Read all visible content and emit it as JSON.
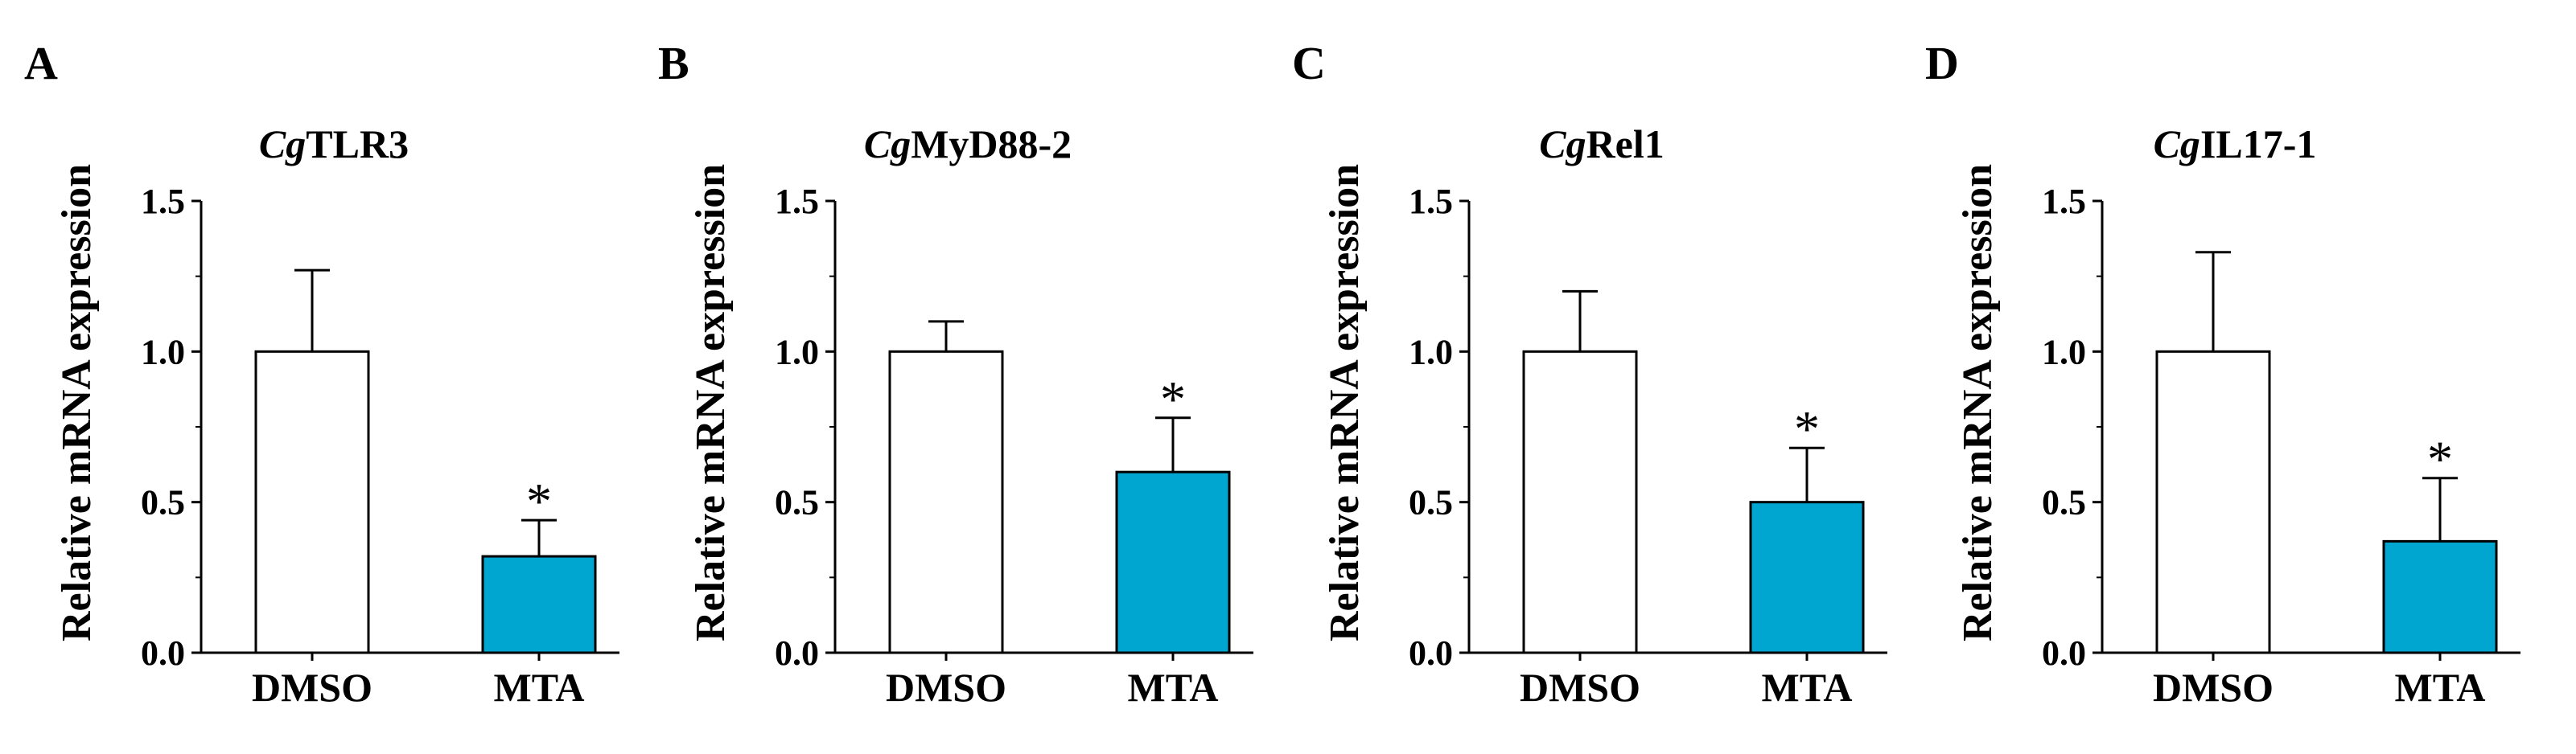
{
  "colors": {
    "control": "#ffffff",
    "treatment": "#00a6cf",
    "axis": "#000000"
  },
  "chart_data": [
    {
      "type": "bar",
      "panel": "A",
      "title_italic": "Cg",
      "title_rest": "TLR3",
      "ylabel": "Relative mRNA expression",
      "xlabel": "",
      "categories": [
        "DMSO",
        "MTA"
      ],
      "values": [
        1.0,
        0.32
      ],
      "errors": [
        0.27,
        0.12
      ],
      "significance": [
        "",
        "*"
      ],
      "ylim": [
        0,
        1.5
      ],
      "yticks": [
        0.0,
        0.5,
        1.0,
        1.5
      ],
      "ytick_labels": [
        "0.0",
        "0.5",
        "1.0",
        "1.5"
      ],
      "grid": false
    },
    {
      "type": "bar",
      "panel": "B",
      "title_italic": "Cg",
      "title_rest": "MyD88-2",
      "ylabel": "Relative mRNA expression",
      "xlabel": "",
      "categories": [
        "DMSO",
        "MTA"
      ],
      "values": [
        1.0,
        0.6
      ],
      "errors": [
        0.1,
        0.18
      ],
      "significance": [
        "",
        "*"
      ],
      "ylim": [
        0,
        1.5
      ],
      "yticks": [
        0.0,
        0.5,
        1.0,
        1.5
      ],
      "ytick_labels": [
        "0.0",
        "0.5",
        "1.0",
        "1.5"
      ],
      "grid": false
    },
    {
      "type": "bar",
      "panel": "C",
      "title_italic": "Cg",
      "title_rest": "Rel1",
      "ylabel": "Relative mRNA expression",
      "xlabel": "",
      "categories": [
        "DMSO",
        "MTA"
      ],
      "values": [
        1.0,
        0.5
      ],
      "errors": [
        0.2,
        0.18
      ],
      "significance": [
        "",
        "*"
      ],
      "ylim": [
        0,
        1.5
      ],
      "yticks": [
        0.0,
        0.5,
        1.0,
        1.5
      ],
      "ytick_labels": [
        "0.0",
        "0.5",
        "1.0",
        "1.5"
      ],
      "grid": false
    },
    {
      "type": "bar",
      "panel": "D",
      "title_italic": "Cg",
      "title_rest": "IL17-1",
      "ylabel": "Relative mRNA expression",
      "xlabel": "",
      "categories": [
        "DMSO",
        "MTA"
      ],
      "values": [
        1.0,
        0.37
      ],
      "errors": [
        0.33,
        0.21
      ],
      "significance": [
        "",
        "*"
      ],
      "ylim": [
        0,
        1.5
      ],
      "yticks": [
        0.0,
        0.5,
        1.0,
        1.5
      ],
      "ytick_labels": [
        "0.0",
        "0.5",
        "1.0",
        "1.5"
      ],
      "grid": false
    }
  ]
}
